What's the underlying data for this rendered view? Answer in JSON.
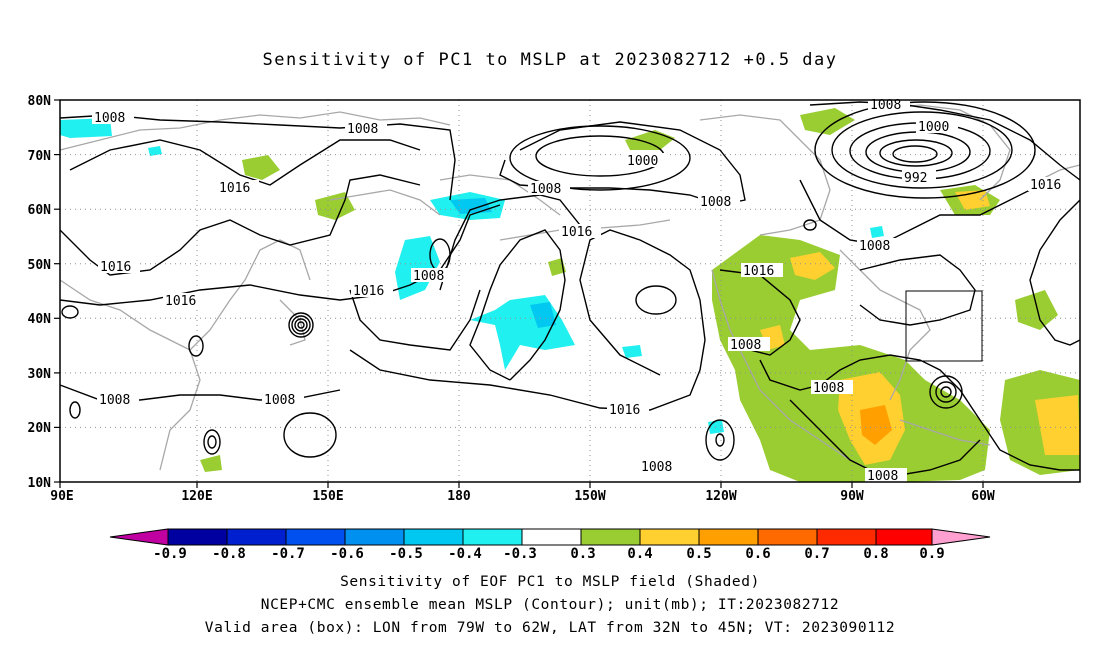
{
  "title": "Sensitivity of PC1 to MSLP at 2023082712 +0.5 day",
  "map": {
    "lat_labels": [
      "80N",
      "70N",
      "60N",
      "50N",
      "40N",
      "30N",
      "20N",
      "10N"
    ],
    "lon_labels": [
      "90E",
      "120E",
      "150E",
      "180",
      "150W",
      "120W",
      "90W",
      "60W"
    ],
    "contour_labels": [
      "1008",
      "1008",
      "1016",
      "1000",
      "1008",
      "1008",
      "992",
      "1000",
      "1008",
      "1016",
      "1016",
      "1016",
      "1008",
      "1008",
      "1016",
      "1016",
      "1016",
      "1008",
      "1008",
      "1008",
      "1016",
      "1008",
      "1008",
      "1008"
    ],
    "valid_area_box": {
      "lon": [
        "79W",
        "62W"
      ],
      "lat": [
        "32N",
        "45N"
      ]
    }
  },
  "colorbar": {
    "labels": [
      "-0.9",
      "-0.8",
      "-0.7",
      "-0.6",
      "-0.5",
      "-0.4",
      "-0.3",
      "0.3",
      "0.4",
      "0.5",
      "0.6",
      "0.7",
      "0.8",
      "0.9"
    ],
    "colors": [
      "#0000a0",
      "#0020d0",
      "#0050f0",
      "#0090f0",
      "#00c8f0",
      "#20f0f0",
      "#ffffff",
      "#9acd32",
      "#ffd030",
      "#ffa000",
      "#ff6a00",
      "#ff2a00"
    ],
    "low_arrow": "#c000a0",
    "high_arrow": "#ffa0d0"
  },
  "captions": [
    "Sensitivity of EOF PC1 to MSLP field (Shaded)",
    "NCEP+CMC ensemble mean MSLP (Contour); unit(mb); IT:2023082712",
    "Valid area (box): LON from 79W to 62W, LAT from 32N to 45N; VT: 2023090112"
  ]
}
